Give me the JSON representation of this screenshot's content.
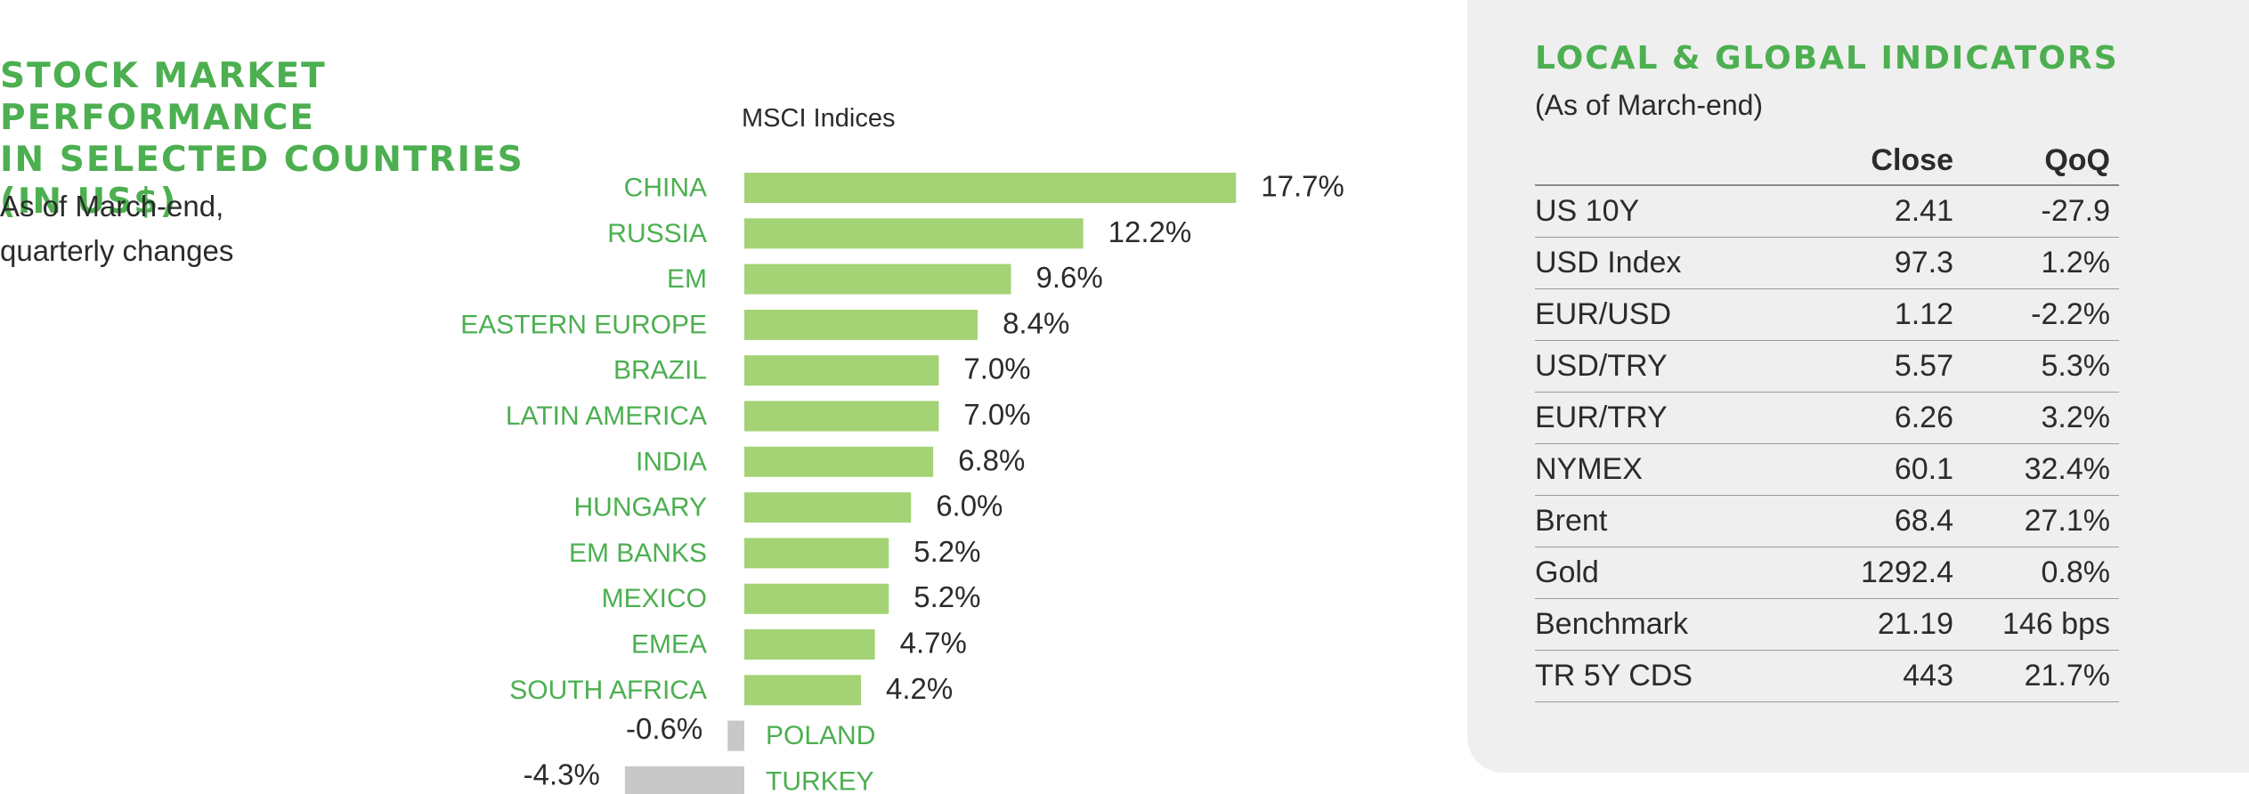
{
  "title": {
    "line1": "STOCK MARKET PERFORMANCE",
    "line2": "IN SELECTED COUNTRIES",
    "line3": "(IN US$)"
  },
  "subtitle": {
    "line1": "As of March-end,",
    "line2": "quarterly changes"
  },
  "colors": {
    "accent": "#4caf50",
    "positive_bar": "#a3d374",
    "negative_bar": "#c8c8c8",
    "panel_bg": "#efefef",
    "text": "#2b2b2b"
  },
  "chart_data": {
    "type": "bar",
    "orientation": "horizontal",
    "title": "MSCI Indices",
    "categories": [
      "CHINA",
      "RUSSIA",
      "EM",
      "EASTERN EUROPE",
      "BRAZIL",
      "LATIN AMERICA",
      "INDIA",
      "HUNGARY",
      "EM BANKS",
      "MEXICO",
      "EMEA",
      "SOUTH AFRICA",
      "POLAND",
      "TURKEY"
    ],
    "values": [
      17.7,
      12.2,
      9.6,
      8.4,
      7.0,
      7.0,
      6.8,
      6.0,
      5.2,
      5.2,
      4.7,
      4.2,
      -0.6,
      -4.3
    ],
    "value_labels": [
      "17.7%",
      "12.2%",
      "9.6%",
      "8.4%",
      "7.0%",
      "7.0%",
      "6.8%",
      "6.0%",
      "5.2%",
      "5.2%",
      "4.7%",
      "4.2%",
      "-0.6%",
      "-4.3%"
    ],
    "unit": "%",
    "grid": false
  },
  "indicators": {
    "title": "LOCAL & GLOBAL INDICATORS",
    "subtitle": "(As of March-end)",
    "columns": [
      "",
      "Close",
      "QoQ"
    ],
    "rows": [
      {
        "name": "US 10Y",
        "close": "2.41",
        "qoq": "-27.9"
      },
      {
        "name": "USD Index",
        "close": "97.3",
        "qoq": "1.2%"
      },
      {
        "name": "EUR/USD",
        "close": "1.12",
        "qoq": "-2.2%"
      },
      {
        "name": "USD/TRY",
        "close": "5.57",
        "qoq": "5.3%"
      },
      {
        "name": "EUR/TRY",
        "close": "6.26",
        "qoq": "3.2%"
      },
      {
        "name": "NYMEX",
        "close": "60.1",
        "qoq": "32.4%"
      },
      {
        "name": "Brent",
        "close": "68.4",
        "qoq": "27.1%"
      },
      {
        "name": "Gold",
        "close": "1292.4",
        "qoq": "0.8%"
      },
      {
        "name": "Benchmark",
        "close": "21.19",
        "qoq": "146 bps"
      },
      {
        "name": "TR 5Y CDS",
        "close": "443",
        "qoq": "21.7%"
      }
    ]
  }
}
